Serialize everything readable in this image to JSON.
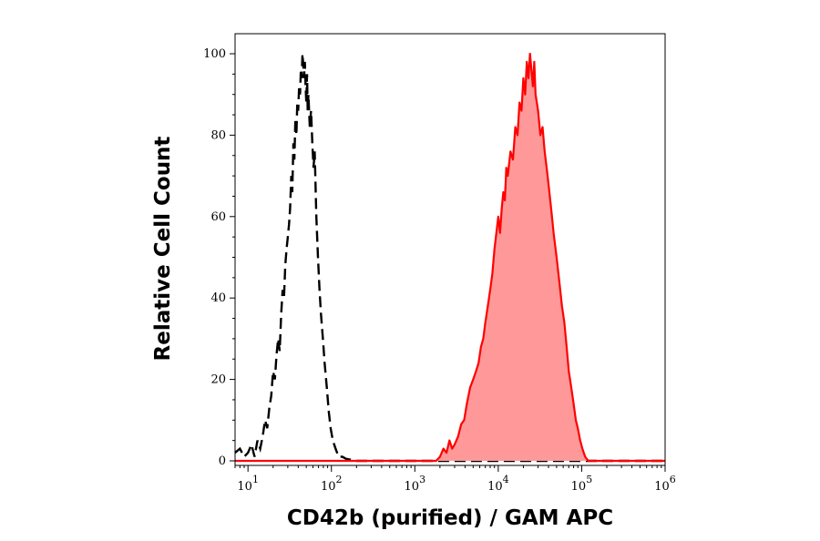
{
  "chart_data": {
    "type": "area",
    "xlabel": "CD42b (purified) / GAM APC",
    "ylabel": "Relative Cell Count",
    "x_scale": "log",
    "xlim": [
      7,
      1000000
    ],
    "ylim": [
      0,
      100
    ],
    "x_ticks": [
      {
        "value": 10,
        "base": "10",
        "exp": "1"
      },
      {
        "value": 100,
        "base": "10",
        "exp": "2"
      },
      {
        "value": 1000,
        "base": "10",
        "exp": "3"
      },
      {
        "value": 10000,
        "base": "10",
        "exp": "4"
      },
      {
        "value": 100000,
        "base": "10",
        "exp": "5"
      },
      {
        "value": 1000000,
        "base": "10",
        "exp": "6"
      }
    ],
    "y_ticks": [
      0,
      20,
      40,
      60,
      80,
      100
    ],
    "grid": false,
    "legend": "none",
    "series": [
      {
        "style": "dashed-outline",
        "color": "#000000",
        "points": [
          [
            7,
            2
          ],
          [
            8,
            3
          ],
          [
            9,
            1
          ],
          [
            10,
            2
          ],
          [
            11,
            4
          ],
          [
            12,
            1
          ],
          [
            13,
            5
          ],
          [
            14,
            3
          ],
          [
            15,
            6
          ],
          [
            16,
            10
          ],
          [
            17,
            8
          ],
          [
            18,
            13
          ],
          [
            19,
            16
          ],
          [
            20,
            22
          ],
          [
            21,
            20
          ],
          [
            22,
            26
          ],
          [
            23,
            30
          ],
          [
            24,
            27
          ],
          [
            25,
            36
          ],
          [
            26,
            42
          ],
          [
            27,
            40
          ],
          [
            28,
            48
          ],
          [
            29,
            52
          ],
          [
            30,
            55
          ],
          [
            31,
            58
          ],
          [
            32,
            62
          ],
          [
            33,
            70
          ],
          [
            34,
            66
          ],
          [
            35,
            78
          ],
          [
            36,
            74
          ],
          [
            37,
            84
          ],
          [
            38,
            80
          ],
          [
            39,
            88
          ],
          [
            40,
            86
          ],
          [
            41,
            92
          ],
          [
            42,
            90
          ],
          [
            43,
            96
          ],
          [
            44,
            94
          ],
          [
            45,
            100
          ],
          [
            46,
            97
          ],
          [
            47,
            94
          ],
          [
            48,
            98
          ],
          [
            49,
            92
          ],
          [
            50,
            88
          ],
          [
            51,
            95
          ],
          [
            52,
            86
          ],
          [
            53,
            90
          ],
          [
            55,
            82
          ],
          [
            57,
            86
          ],
          [
            59,
            78
          ],
          [
            61,
            72
          ],
          [
            63,
            76
          ],
          [
            66,
            60
          ],
          [
            69,
            50
          ],
          [
            72,
            42
          ],
          [
            75,
            36
          ],
          [
            79,
            30
          ],
          [
            83,
            24
          ],
          [
            88,
            18
          ],
          [
            93,
            12
          ],
          [
            98,
            8
          ],
          [
            104,
            5
          ],
          [
            112,
            3
          ],
          [
            122,
            1
          ],
          [
            135,
            1
          ],
          [
            150,
            0.5
          ],
          [
            170,
            0.3
          ],
          [
            200,
            0
          ],
          [
            400,
            0
          ],
          [
            1000,
            0
          ],
          [
            3000,
            0
          ],
          [
            10000,
            0
          ],
          [
            30000,
            0
          ],
          [
            100000,
            0
          ],
          [
            1000000,
            0
          ]
        ]
      },
      {
        "style": "filled",
        "color": "#ff0000",
        "fill": "#ff9999",
        "points": [
          [
            7,
            0
          ],
          [
            1000,
            0
          ],
          [
            1800,
            0
          ],
          [
            2000,
            1
          ],
          [
            2200,
            3
          ],
          [
            2400,
            2
          ],
          [
            2600,
            5
          ],
          [
            2800,
            3
          ],
          [
            3000,
            4
          ],
          [
            3300,
            6
          ],
          [
            3600,
            9
          ],
          [
            3900,
            10
          ],
          [
            4200,
            14
          ],
          [
            4600,
            18
          ],
          [
            5000,
            20
          ],
          [
            5400,
            22
          ],
          [
            5800,
            24
          ],
          [
            6200,
            28
          ],
          [
            6600,
            30
          ],
          [
            7000,
            34
          ],
          [
            7500,
            38
          ],
          [
            8000,
            42
          ],
          [
            8500,
            46
          ],
          [
            9000,
            52
          ],
          [
            9500,
            56
          ],
          [
            10000,
            60
          ],
          [
            10500,
            56
          ],
          [
            11000,
            62
          ],
          [
            11500,
            66
          ],
          [
            12000,
            64
          ],
          [
            12500,
            72
          ],
          [
            13000,
            70
          ],
          [
            14000,
            76
          ],
          [
            15000,
            74
          ],
          [
            16000,
            82
          ],
          [
            17000,
            80
          ],
          [
            18000,
            88
          ],
          [
            19000,
            86
          ],
          [
            20000,
            94
          ],
          [
            21000,
            90
          ],
          [
            22000,
            98
          ],
          [
            23000,
            94
          ],
          [
            24000,
            100
          ],
          [
            25000,
            96
          ],
          [
            26000,
            92
          ],
          [
            27000,
            98
          ],
          [
            28000,
            90
          ],
          [
            30000,
            86
          ],
          [
            32000,
            80
          ],
          [
            34000,
            82
          ],
          [
            36000,
            76
          ],
          [
            38000,
            72
          ],
          [
            40000,
            68
          ],
          [
            43000,
            62
          ],
          [
            46000,
            56
          ],
          [
            50000,
            50
          ],
          [
            54000,
            44
          ],
          [
            58000,
            38
          ],
          [
            62000,
            34
          ],
          [
            66000,
            28
          ],
          [
            70000,
            22
          ],
          [
            75000,
            18
          ],
          [
            80000,
            14
          ],
          [
            85000,
            10
          ],
          [
            90000,
            8
          ],
          [
            96000,
            5
          ],
          [
            102000,
            3
          ],
          [
            110000,
            1
          ],
          [
            120000,
            0
          ],
          [
            200000,
            0
          ],
          [
            1000000,
            0
          ]
        ]
      }
    ]
  }
}
